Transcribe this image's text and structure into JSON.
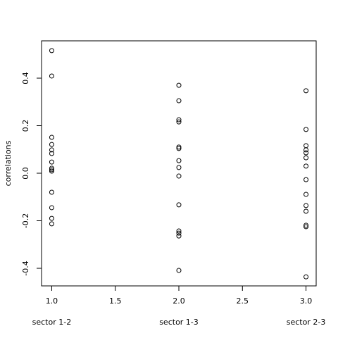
{
  "chart_data": {
    "type": "scatter",
    "y_label": "correlations",
    "x": [
      1,
      1,
      1,
      1,
      1,
      1,
      1,
      1,
      1,
      1,
      1,
      1,
      1,
      1,
      2,
      2,
      2,
      2,
      2,
      2,
      2,
      2,
      2,
      2,
      2,
      2,
      2,
      2,
      3,
      3,
      3,
      3,
      3,
      3,
      3,
      3,
      3,
      3,
      3,
      3,
      3,
      3
    ],
    "values": [
      0.516,
      0.409,
      0.151,
      0.121,
      0.098,
      0.083,
      0.047,
      0.021,
      0.015,
      0.009,
      -0.08,
      -0.145,
      -0.19,
      -0.213,
      0.37,
      0.305,
      0.225,
      0.216,
      0.11,
      0.104,
      0.053,
      0.024,
      -0.012,
      -0.133,
      -0.243,
      -0.252,
      -0.264,
      -0.409,
      0.347,
      0.184,
      0.116,
      0.098,
      0.086,
      0.065,
      0.03,
      -0.027,
      -0.089,
      -0.136,
      -0.16,
      -0.219,
      -0.225,
      -0.436
    ],
    "color": "#000000",
    "xlim": [
      0.92,
      3.08
    ],
    "xticks": [
      {
        "value": 1,
        "label": "1.0"
      },
      {
        "value": 1.5,
        "label": "1.5"
      },
      {
        "value": 2,
        "label": "2.0"
      },
      {
        "value": 2.5,
        "label": "2.5"
      },
      {
        "value": 3,
        "label": "3.0"
      }
    ],
    "ylim": [
      -0.474,
      0.557
    ],
    "yticks": [
      -0.4,
      -0.2,
      {
        "value": 0,
        "label": "0.0"
      },
      0.2,
      0.4
    ],
    "group_labels": [
      "sector 1-2",
      "sector 1-3",
      "sector 2-3"
    ]
  }
}
